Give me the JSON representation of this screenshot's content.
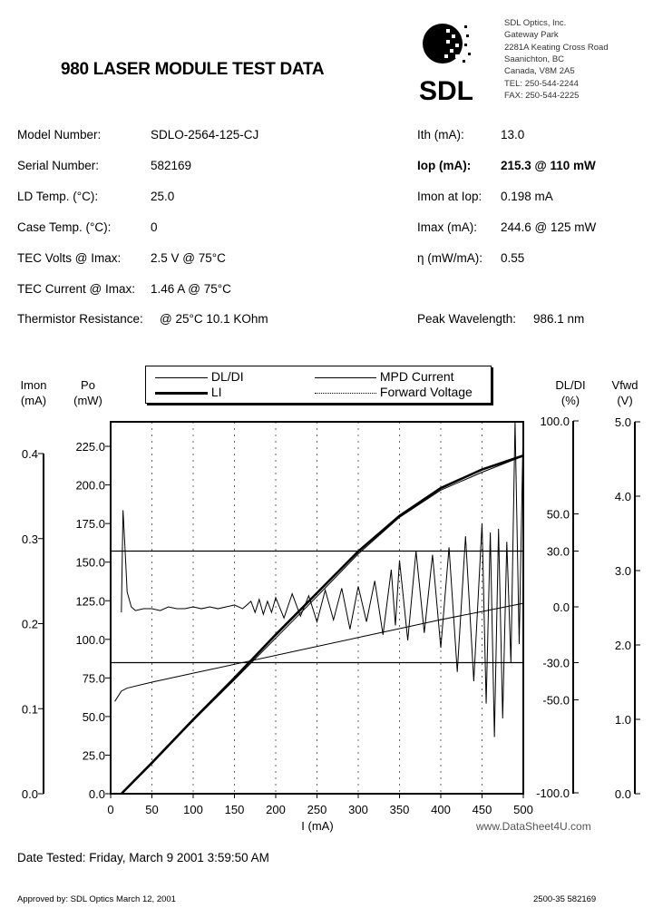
{
  "title": "980 LASER MODULE TEST DATA",
  "logo": {
    "text": "SDL",
    "trademark": "™"
  },
  "address": [
    "SDL Optics, Inc.",
    "Gateway Park",
    "2281A Keating Cross Road",
    "Saanichton, BC",
    "Canada, V8M 2A5",
    "TEL: 250-544-2244",
    "FAX: 250-544-2225"
  ],
  "fields_left": [
    {
      "label": "Model Number:",
      "value": "SDLO-2564-125-CJ"
    },
    {
      "label": "Serial Number:",
      "value": "582169"
    },
    {
      "label": "LD Temp. (°C):",
      "value": "25.0"
    },
    {
      "label": "Case Temp. (°C):",
      "value": "0"
    },
    {
      "label": "TEC Volts @ Imax:",
      "value": "2.5 V @  75°C"
    },
    {
      "label": "TEC Current @ Imax:",
      "value": "1.46 A @  75°C"
    },
    {
      "label": "Thermistor Resistance:",
      "value": "@ 25°C 10.1 KOhm"
    }
  ],
  "fields_right": [
    {
      "label": "Ith (mA):",
      "value": "13.0"
    },
    {
      "label": "Iop (mA):",
      "value": "215.3 @  110 mW"
    },
    {
      "label": "Imon at Iop:",
      "value": "0.198 mA"
    },
    {
      "label": "Imax (mA):",
      "value": "244.6 @  125 mW"
    },
    {
      "label": "η (mW/mA):",
      "value": "0.55"
    },
    {
      "label": "Peak Wavelength:",
      "value": "986.1 nm"
    }
  ],
  "chart_data": {
    "type": "line",
    "xlabel": "I (mA)",
    "xlim": [
      0,
      500
    ],
    "xticks": [
      "0",
      "50",
      "100",
      "150",
      "200",
      "250",
      "300",
      "350",
      "400",
      "450",
      "500"
    ],
    "axes": {
      "imon": {
        "label": [
          "Imon",
          "(mA)"
        ],
        "ylim": [
          0,
          0.42
        ],
        "ticks": [
          "0.4",
          "0.3",
          "0.2",
          "0.1",
          "0.0"
        ],
        "tick_values": [
          0.4,
          0.3,
          0.2,
          0.1,
          0.0
        ]
      },
      "po": {
        "label": [
          "Po",
          "(mW)"
        ],
        "ylim": [
          0,
          225
        ],
        "ticks": [
          "225.0",
          "200.0",
          "175.0",
          "150.0",
          "125.0",
          "100.0",
          "75.0",
          "50.0",
          "25.0",
          "0.0"
        ],
        "tick_values": [
          225,
          200,
          175,
          150,
          125,
          100,
          75,
          50,
          25,
          0
        ]
      },
      "dldi": {
        "label": [
          "DL/DI",
          "(%)"
        ],
        "ylim": [
          -100,
          100
        ],
        "ticks": [
          "100.0",
          "50.0",
          "30.0",
          "0.0",
          "-30.0",
          "-50.0",
          "-100.0"
        ],
        "tick_values": [
          100,
          50,
          30,
          0,
          -30,
          -50,
          -100
        ]
      },
      "vfwd": {
        "label": [
          "Vfwd",
          "(V)"
        ],
        "ylim": [
          0,
          5
        ],
        "ticks": [
          "5.0",
          "4.0",
          "3.0",
          "2.0",
          "1.0",
          "0.0"
        ],
        "tick_values": [
          5,
          4,
          3,
          2,
          1,
          0
        ]
      }
    },
    "reference_lines_dldi": [
      30,
      -30
    ],
    "grid": "dotted vertical",
    "legend": "top",
    "series": [
      {
        "name": "DL/DI",
        "axis": "dldi",
        "style": "thin",
        "points": [
          [
            13,
            -3
          ],
          [
            15,
            52
          ],
          [
            17,
            35
          ],
          [
            20,
            8
          ],
          [
            25,
            0
          ],
          [
            30,
            -2
          ],
          [
            40,
            -1
          ],
          [
            50,
            -1
          ],
          [
            60,
            -2
          ],
          [
            70,
            0
          ],
          [
            80,
            -1
          ],
          [
            90,
            -1
          ],
          [
            100,
            0
          ],
          [
            110,
            -1
          ],
          [
            120,
            0
          ],
          [
            130,
            -1
          ],
          [
            140,
            0
          ],
          [
            150,
            1
          ],
          [
            160,
            -1
          ],
          [
            170,
            3
          ],
          [
            175,
            -3
          ],
          [
            180,
            4
          ],
          [
            185,
            -4
          ],
          [
            190,
            3
          ],
          [
            195,
            -3
          ],
          [
            200,
            5
          ],
          [
            210,
            -6
          ],
          [
            220,
            7
          ],
          [
            230,
            -5
          ],
          [
            240,
            6
          ],
          [
            250,
            -8
          ],
          [
            260,
            9
          ],
          [
            270,
            -7
          ],
          [
            280,
            10
          ],
          [
            290,
            -12
          ],
          [
            300,
            11
          ],
          [
            310,
            -8
          ],
          [
            320,
            14
          ],
          [
            330,
            -15
          ],
          [
            340,
            20
          ],
          [
            345,
            -10
          ],
          [
            350,
            25
          ],
          [
            360,
            -18
          ],
          [
            370,
            30
          ],
          [
            380,
            -14
          ],
          [
            390,
            28
          ],
          [
            400,
            -22
          ],
          [
            410,
            32
          ],
          [
            420,
            -35
          ],
          [
            430,
            38
          ],
          [
            440,
            -40
          ],
          [
            450,
            45
          ],
          [
            455,
            -52
          ],
          [
            460,
            40
          ],
          [
            465,
            -70
          ],
          [
            470,
            42
          ],
          [
            475,
            -60
          ],
          [
            480,
            35
          ],
          [
            485,
            -30
          ],
          [
            490,
            100
          ],
          [
            495,
            -20
          ],
          [
            500,
            100
          ]
        ]
      },
      {
        "name": "LI",
        "axis": "po",
        "style": "thick",
        "points": [
          [
            13,
            0
          ],
          [
            50,
            20
          ],
          [
            100,
            48
          ],
          [
            150,
            75
          ],
          [
            200,
            103
          ],
          [
            250,
            130
          ],
          [
            300,
            157
          ],
          [
            350,
            180
          ],
          [
            400,
            198
          ],
          [
            450,
            210
          ],
          [
            500,
            219
          ]
        ]
      },
      {
        "name": "MPD Current",
        "axis": "imon",
        "style": "thin",
        "points": [
          [
            13,
            0
          ],
          [
            50,
            0.037
          ],
          [
            100,
            0.086
          ],
          [
            150,
            0.134
          ],
          [
            200,
            0.183
          ],
          [
            250,
            0.232
          ],
          [
            300,
            0.282
          ],
          [
            350,
            0.325
          ],
          [
            400,
            0.357
          ],
          [
            450,
            0.378
          ],
          [
            500,
            0.397
          ]
        ]
      },
      {
        "name": "Forward Voltage",
        "axis": "vfwd",
        "style": "thin",
        "points": [
          [
            5,
            1.24
          ],
          [
            13,
            1.38
          ],
          [
            20,
            1.42
          ],
          [
            50,
            1.5
          ],
          [
            100,
            1.62
          ],
          [
            150,
            1.74
          ],
          [
            200,
            1.86
          ],
          [
            250,
            1.98
          ],
          [
            300,
            2.1
          ],
          [
            350,
            2.22
          ],
          [
            400,
            2.34
          ],
          [
            450,
            2.45
          ],
          [
            500,
            2.56
          ]
        ]
      }
    ]
  },
  "watermark": "www.DataSheet4U.com",
  "date_tested": "Date Tested: Friday, March 9 2001 3:59:50 AM",
  "approved": "Approved by: SDL Optics     March 12, 2001",
  "doc_number": "2500-35   582169",
  "colors": {
    "ink": "#000000"
  }
}
